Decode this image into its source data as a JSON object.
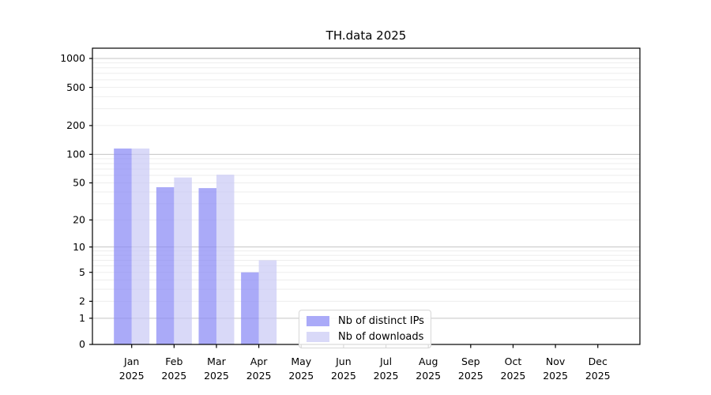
{
  "chart_data": {
    "type": "bar",
    "title": "TH.data 2025",
    "categories": [
      "Jan",
      "Feb",
      "Mar",
      "Apr",
      "May",
      "Jun",
      "Jul",
      "Aug",
      "Sep",
      "Oct",
      "Nov",
      "Dec"
    ],
    "year_label": "2025",
    "series": [
      {
        "name": "Nb of distinct IPs",
        "color": "rgba(137,137,245,0.72)",
        "values": [
          115,
          45,
          44,
          5,
          0,
          0,
          0,
          0,
          0,
          0,
          0,
          0
        ]
      },
      {
        "name": "Nb of downloads",
        "color": "rgba(200,200,245,0.69)",
        "values": [
          115,
          57,
          61,
          7,
          0,
          0,
          0,
          0,
          0,
          0,
          0,
          0
        ]
      }
    ],
    "yticks": [
      0,
      1,
      2,
      5,
      10,
      20,
      50,
      100,
      200,
      500,
      1000
    ],
    "scale": "log1p",
    "ylim": [
      0,
      1280
    ],
    "grid": true,
    "legend_position": "lower center",
    "colors": {
      "decade_gridline": "#c4c4c4",
      "minor_gridline": "#ededed",
      "spine": "#000000",
      "text": "#000000"
    }
  }
}
